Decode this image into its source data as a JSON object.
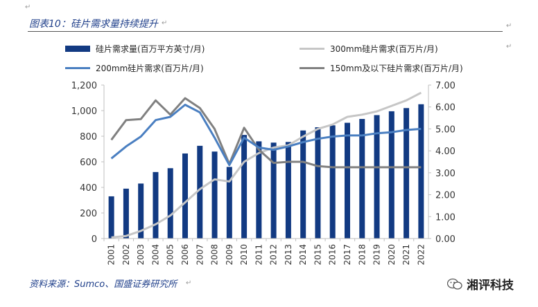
{
  "header": {
    "title": "图表10：硅片需求量持续提升"
  },
  "footer": {
    "source": "资料来源：Sumco、国盛证券研究所"
  },
  "watermark": {
    "text": "湘评科技"
  },
  "colors": {
    "bars": "#123a82",
    "s300": "#c6c6c6",
    "s200": "#4a7fc1",
    "s150": "#808080",
    "axis": "#bfbfbf"
  },
  "chart_data": {
    "type": "bar",
    "title": "图表10：硅片需求量持续提升",
    "categories": [
      "2001",
      "2002",
      "2003",
      "2004",
      "2005",
      "2006",
      "2007",
      "2008",
      "2009",
      "2010",
      "2011",
      "2012",
      "2013",
      "2014",
      "2015",
      "2016",
      "2017",
      "2018",
      "2019",
      "2020",
      "2021",
      "2022"
    ],
    "left_axis": {
      "min": 0,
      "max": 1200,
      "ticks": [
        "0",
        "200",
        "400",
        "600",
        "800",
        "1,000",
        "1,200"
      ],
      "tick_values": [
        0,
        200,
        400,
        600,
        800,
        1000,
        1200
      ]
    },
    "right_axis": {
      "min": 0,
      "max": 7,
      "ticks": [
        "0.00",
        "1.00",
        "2.00",
        "3.00",
        "4.00",
        "5.00",
        "6.00",
        "7.00"
      ],
      "tick_values": [
        0,
        1,
        2,
        3,
        4,
        5,
        6,
        7
      ]
    },
    "series": [
      {
        "name": "硅片需求量(百万平方英寸/月)",
        "type": "bar",
        "axis": "left",
        "values": [
          330,
          390,
          430,
          520,
          550,
          665,
          725,
          680,
          560,
          810,
          760,
          750,
          755,
          845,
          870,
          885,
          905,
          935,
          965,
          995,
          1020,
          1050
        ]
      },
      {
        "name": "300mm硅片需求(百万片/月)",
        "type": "line",
        "axis": "right",
        "values": [
          0.05,
          0.12,
          0.35,
          0.65,
          1.05,
          1.65,
          2.25,
          2.7,
          2.6,
          3.5,
          3.9,
          4.15,
          4.25,
          4.65,
          5.0,
          5.2,
          5.55,
          5.65,
          5.8,
          6.05,
          6.3,
          6.65
        ]
      },
      {
        "name": "200mm硅片需求(百万片/月)",
        "type": "line",
        "axis": "right",
        "values": [
          3.65,
          4.2,
          4.65,
          5.4,
          5.55,
          6.1,
          5.75,
          4.6,
          3.35,
          4.6,
          4.15,
          4.05,
          4.2,
          4.4,
          4.55,
          4.65,
          4.7,
          4.7,
          4.8,
          4.85,
          4.95,
          5.0
        ]
      },
      {
        "name": "150mm及以下硅片需求(百万片/月)",
        "type": "line",
        "axis": "right",
        "values": [
          4.5,
          5.4,
          5.45,
          6.3,
          5.65,
          6.4,
          5.95,
          5.0,
          3.4,
          5.05,
          4.05,
          3.45,
          3.5,
          3.5,
          3.3,
          3.25,
          3.25,
          3.25,
          3.25,
          3.25,
          3.25,
          3.25
        ]
      }
    ]
  }
}
